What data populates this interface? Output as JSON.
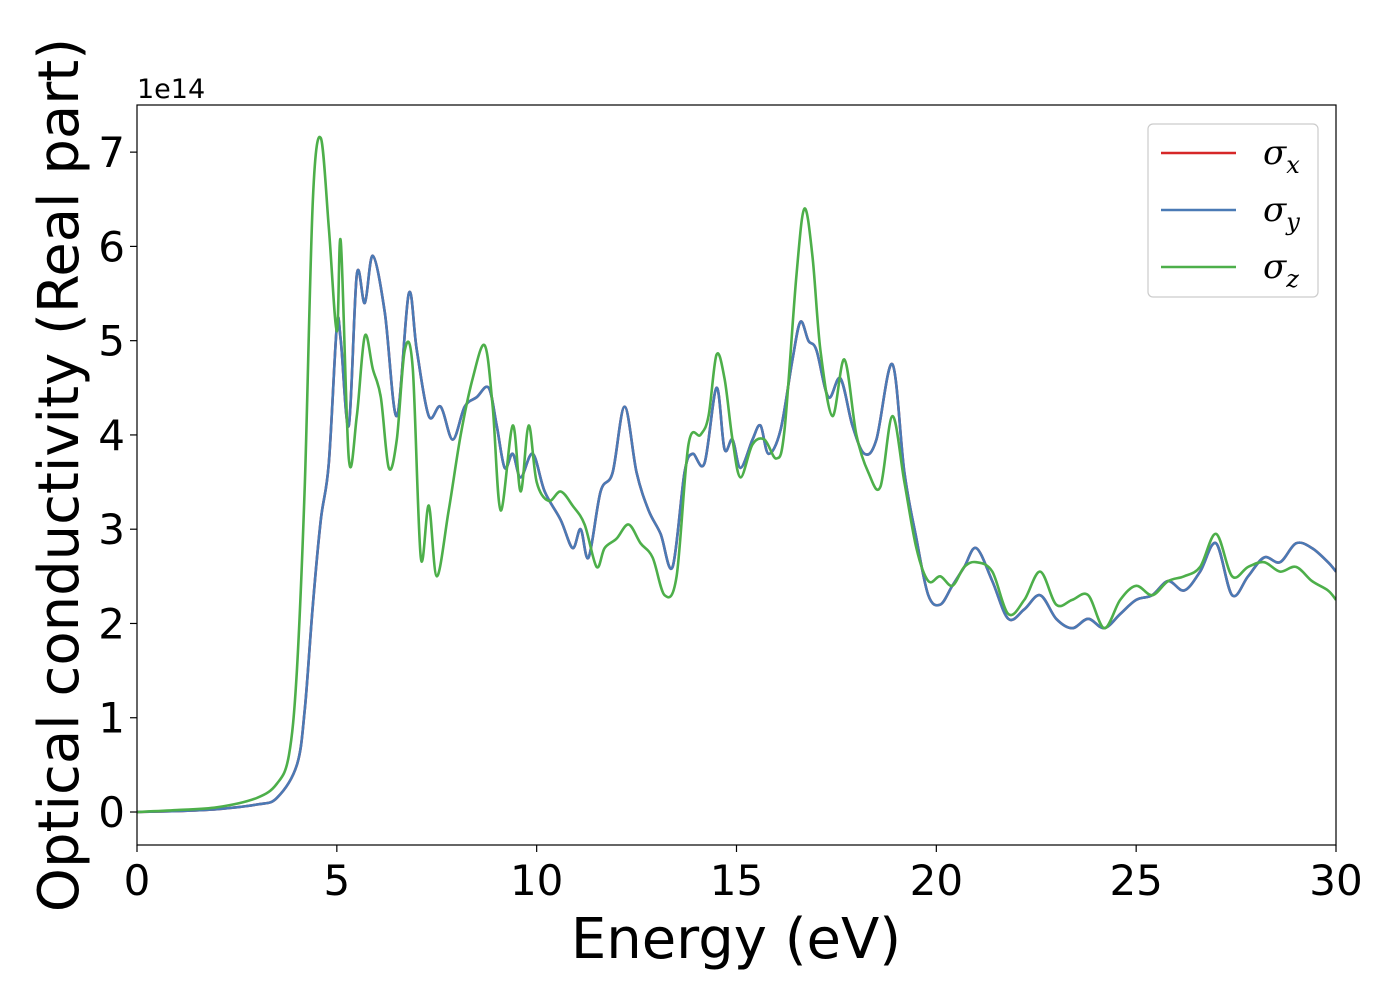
{
  "chart_data": {
    "type": "line",
    "title": "",
    "xlabel": "Energy (eV)",
    "ylabel": "Optical conductivity (Real part)",
    "offset_label": "1e14",
    "xlim": [
      0,
      30
    ],
    "ylim": [
      -0.35,
      7.5
    ],
    "y_multiplier": 100000000000000.0,
    "xticks": [
      0,
      5,
      10,
      15,
      20,
      25,
      30
    ],
    "xtick_labels": [
      "0",
      "5",
      "10",
      "15",
      "20",
      "25",
      "30"
    ],
    "yticks": [
      0,
      1,
      2,
      3,
      4,
      5,
      6,
      7
    ],
    "ytick_labels": [
      "0",
      "1",
      "2",
      "3",
      "4",
      "5",
      "6",
      "7"
    ],
    "grid": false,
    "legend_position": "top-right",
    "legend": [
      {
        "base": "σ",
        "sub": "x",
        "color": "#d62728"
      },
      {
        "base": "σ",
        "sub": "y",
        "color": "#4a7ab5"
      },
      {
        "base": "σ",
        "sub": "z",
        "color": "#4daf4a"
      }
    ],
    "series": [
      {
        "name": "σx",
        "color": "#d62728",
        "x": [
          0,
          1,
          2,
          3,
          3.5,
          4,
          4.2,
          4.4,
          4.6,
          4.8,
          5.0,
          5.1,
          5.3,
          5.5,
          5.7,
          5.9,
          6.2,
          6.5,
          6.8,
          7.0,
          7.3,
          7.6,
          7.9,
          8.2,
          8.5,
          8.8,
          9.0,
          9.2,
          9.4,
          9.6,
          9.9,
          10.2,
          10.6,
          10.9,
          11.1,
          11.3,
          11.6,
          11.9,
          12.2,
          12.5,
          12.8,
          13.1,
          13.4,
          13.7,
          13.9,
          14.2,
          14.5,
          14.7,
          14.9,
          15.1,
          15.4,
          15.6,
          15.8,
          16.1,
          16.4,
          16.6,
          16.8,
          17.0,
          17.3,
          17.6,
          17.9,
          18.2,
          18.5,
          18.9,
          19.2,
          19.5,
          19.8,
          20.1,
          20.4,
          20.7,
          21.0,
          21.4,
          21.8,
          22.2,
          22.6,
          23.0,
          23.4,
          23.8,
          24.2,
          24.6,
          25.0,
          25.4,
          25.8,
          26.2,
          26.6,
          27.0,
          27.4,
          27.8,
          28.2,
          28.6,
          29.0,
          29.4,
          29.8,
          30.0
        ],
        "y": [
          0,
          0.01,
          0.03,
          0.08,
          0.15,
          0.5,
          1.1,
          2.2,
          3.1,
          3.7,
          5.15,
          5.0,
          4.1,
          5.7,
          5.4,
          5.9,
          5.3,
          4.2,
          5.5,
          4.9,
          4.2,
          4.3,
          3.95,
          4.3,
          4.4,
          4.5,
          4.1,
          3.65,
          3.8,
          3.55,
          3.8,
          3.4,
          3.1,
          2.8,
          3.0,
          2.7,
          3.4,
          3.6,
          4.3,
          3.6,
          3.2,
          2.95,
          2.6,
          3.6,
          3.8,
          3.7,
          4.5,
          3.85,
          3.95,
          3.65,
          3.95,
          4.1,
          3.8,
          4.05,
          4.8,
          5.2,
          5.0,
          4.9,
          4.4,
          4.6,
          4.1,
          3.8,
          3.95,
          4.75,
          3.6,
          2.9,
          2.3,
          2.2,
          2.4,
          2.6,
          2.8,
          2.45,
          2.05,
          2.15,
          2.3,
          2.05,
          1.95,
          2.05,
          1.95,
          2.1,
          2.25,
          2.3,
          2.45,
          2.35,
          2.55,
          2.85,
          2.3,
          2.5,
          2.7,
          2.65,
          2.85,
          2.8,
          2.65,
          2.55
        ]
      },
      {
        "name": "σy",
        "color": "#4a7ab5",
        "x": [
          0,
          1,
          2,
          3,
          3.5,
          4,
          4.2,
          4.4,
          4.6,
          4.8,
          5.0,
          5.1,
          5.3,
          5.5,
          5.7,
          5.9,
          6.2,
          6.5,
          6.8,
          7.0,
          7.3,
          7.6,
          7.9,
          8.2,
          8.5,
          8.8,
          9.0,
          9.2,
          9.4,
          9.6,
          9.9,
          10.2,
          10.6,
          10.9,
          11.1,
          11.3,
          11.6,
          11.9,
          12.2,
          12.5,
          12.8,
          13.1,
          13.4,
          13.7,
          13.9,
          14.2,
          14.5,
          14.7,
          14.9,
          15.1,
          15.4,
          15.6,
          15.8,
          16.1,
          16.4,
          16.6,
          16.8,
          17.0,
          17.3,
          17.6,
          17.9,
          18.2,
          18.5,
          18.9,
          19.2,
          19.5,
          19.8,
          20.1,
          20.4,
          20.7,
          21.0,
          21.4,
          21.8,
          22.2,
          22.6,
          23.0,
          23.4,
          23.8,
          24.2,
          24.6,
          25.0,
          25.4,
          25.8,
          26.2,
          26.6,
          27.0,
          27.4,
          27.8,
          28.2,
          28.6,
          29.0,
          29.4,
          29.8,
          30.0
        ],
        "y": [
          0,
          0.01,
          0.03,
          0.08,
          0.15,
          0.5,
          1.1,
          2.2,
          3.1,
          3.7,
          5.15,
          5.0,
          4.1,
          5.7,
          5.4,
          5.9,
          5.3,
          4.2,
          5.5,
          4.9,
          4.2,
          4.3,
          3.95,
          4.3,
          4.4,
          4.5,
          4.1,
          3.65,
          3.8,
          3.55,
          3.8,
          3.4,
          3.1,
          2.8,
          3.0,
          2.7,
          3.4,
          3.6,
          4.3,
          3.6,
          3.2,
          2.95,
          2.6,
          3.6,
          3.8,
          3.7,
          4.5,
          3.85,
          3.95,
          3.65,
          3.95,
          4.1,
          3.8,
          4.05,
          4.8,
          5.2,
          5.0,
          4.9,
          4.4,
          4.6,
          4.1,
          3.8,
          3.95,
          4.75,
          3.6,
          2.9,
          2.3,
          2.2,
          2.4,
          2.6,
          2.8,
          2.45,
          2.05,
          2.15,
          2.3,
          2.05,
          1.95,
          2.05,
          1.95,
          2.1,
          2.25,
          2.3,
          2.45,
          2.35,
          2.55,
          2.85,
          2.3,
          2.5,
          2.7,
          2.65,
          2.85,
          2.8,
          2.65,
          2.55
        ]
      },
      {
        "name": "σz",
        "color": "#4daf4a",
        "x": [
          0,
          1,
          2,
          3,
          3.5,
          3.8,
          4.0,
          4.2,
          4.4,
          4.6,
          4.8,
          5.0,
          5.1,
          5.3,
          5.5,
          5.7,
          5.9,
          6.1,
          6.3,
          6.5,
          6.7,
          6.9,
          7.1,
          7.3,
          7.5,
          7.8,
          8.1,
          8.4,
          8.7,
          8.9,
          9.1,
          9.4,
          9.6,
          9.8,
          10.0,
          10.3,
          10.6,
          10.9,
          11.2,
          11.5,
          11.7,
          12.0,
          12.3,
          12.6,
          12.9,
          13.2,
          13.5,
          13.8,
          14.1,
          14.3,
          14.5,
          14.7,
          14.9,
          15.1,
          15.4,
          15.7,
          16.0,
          16.2,
          16.5,
          16.7,
          16.9,
          17.1,
          17.4,
          17.7,
          18.0,
          18.3,
          18.6,
          18.9,
          19.2,
          19.5,
          19.8,
          20.1,
          20.4,
          20.7,
          21.0,
          21.4,
          21.8,
          22.2,
          22.6,
          23.0,
          23.4,
          23.8,
          24.2,
          24.6,
          25.0,
          25.4,
          25.8,
          26.2,
          26.6,
          27.0,
          27.4,
          27.8,
          28.2,
          28.6,
          29.0,
          29.4,
          29.8,
          30.0
        ],
        "y": [
          0,
          0.02,
          0.05,
          0.15,
          0.3,
          0.6,
          1.5,
          3.5,
          6.5,
          7.15,
          6.2,
          5.1,
          6.05,
          3.75,
          4.2,
          5.05,
          4.7,
          4.4,
          3.65,
          3.95,
          4.9,
          4.7,
          2.7,
          3.25,
          2.5,
          3.2,
          4.0,
          4.6,
          4.95,
          4.3,
          3.2,
          4.1,
          3.4,
          4.1,
          3.5,
          3.3,
          3.4,
          3.25,
          3.05,
          2.6,
          2.8,
          2.9,
          3.05,
          2.85,
          2.7,
          2.3,
          2.5,
          3.9,
          4.0,
          4.2,
          4.85,
          4.6,
          3.95,
          3.55,
          3.9,
          3.95,
          3.75,
          4.05,
          5.7,
          6.4,
          5.9,
          4.9,
          4.2,
          4.8,
          4.0,
          3.6,
          3.45,
          4.2,
          3.5,
          2.8,
          2.45,
          2.5,
          2.4,
          2.6,
          2.65,
          2.55,
          2.1,
          2.25,
          2.55,
          2.2,
          2.25,
          2.3,
          1.95,
          2.25,
          2.4,
          2.3,
          2.45,
          2.5,
          2.6,
          2.95,
          2.5,
          2.6,
          2.65,
          2.55,
          2.6,
          2.45,
          2.35,
          2.25
        ]
      }
    ]
  }
}
